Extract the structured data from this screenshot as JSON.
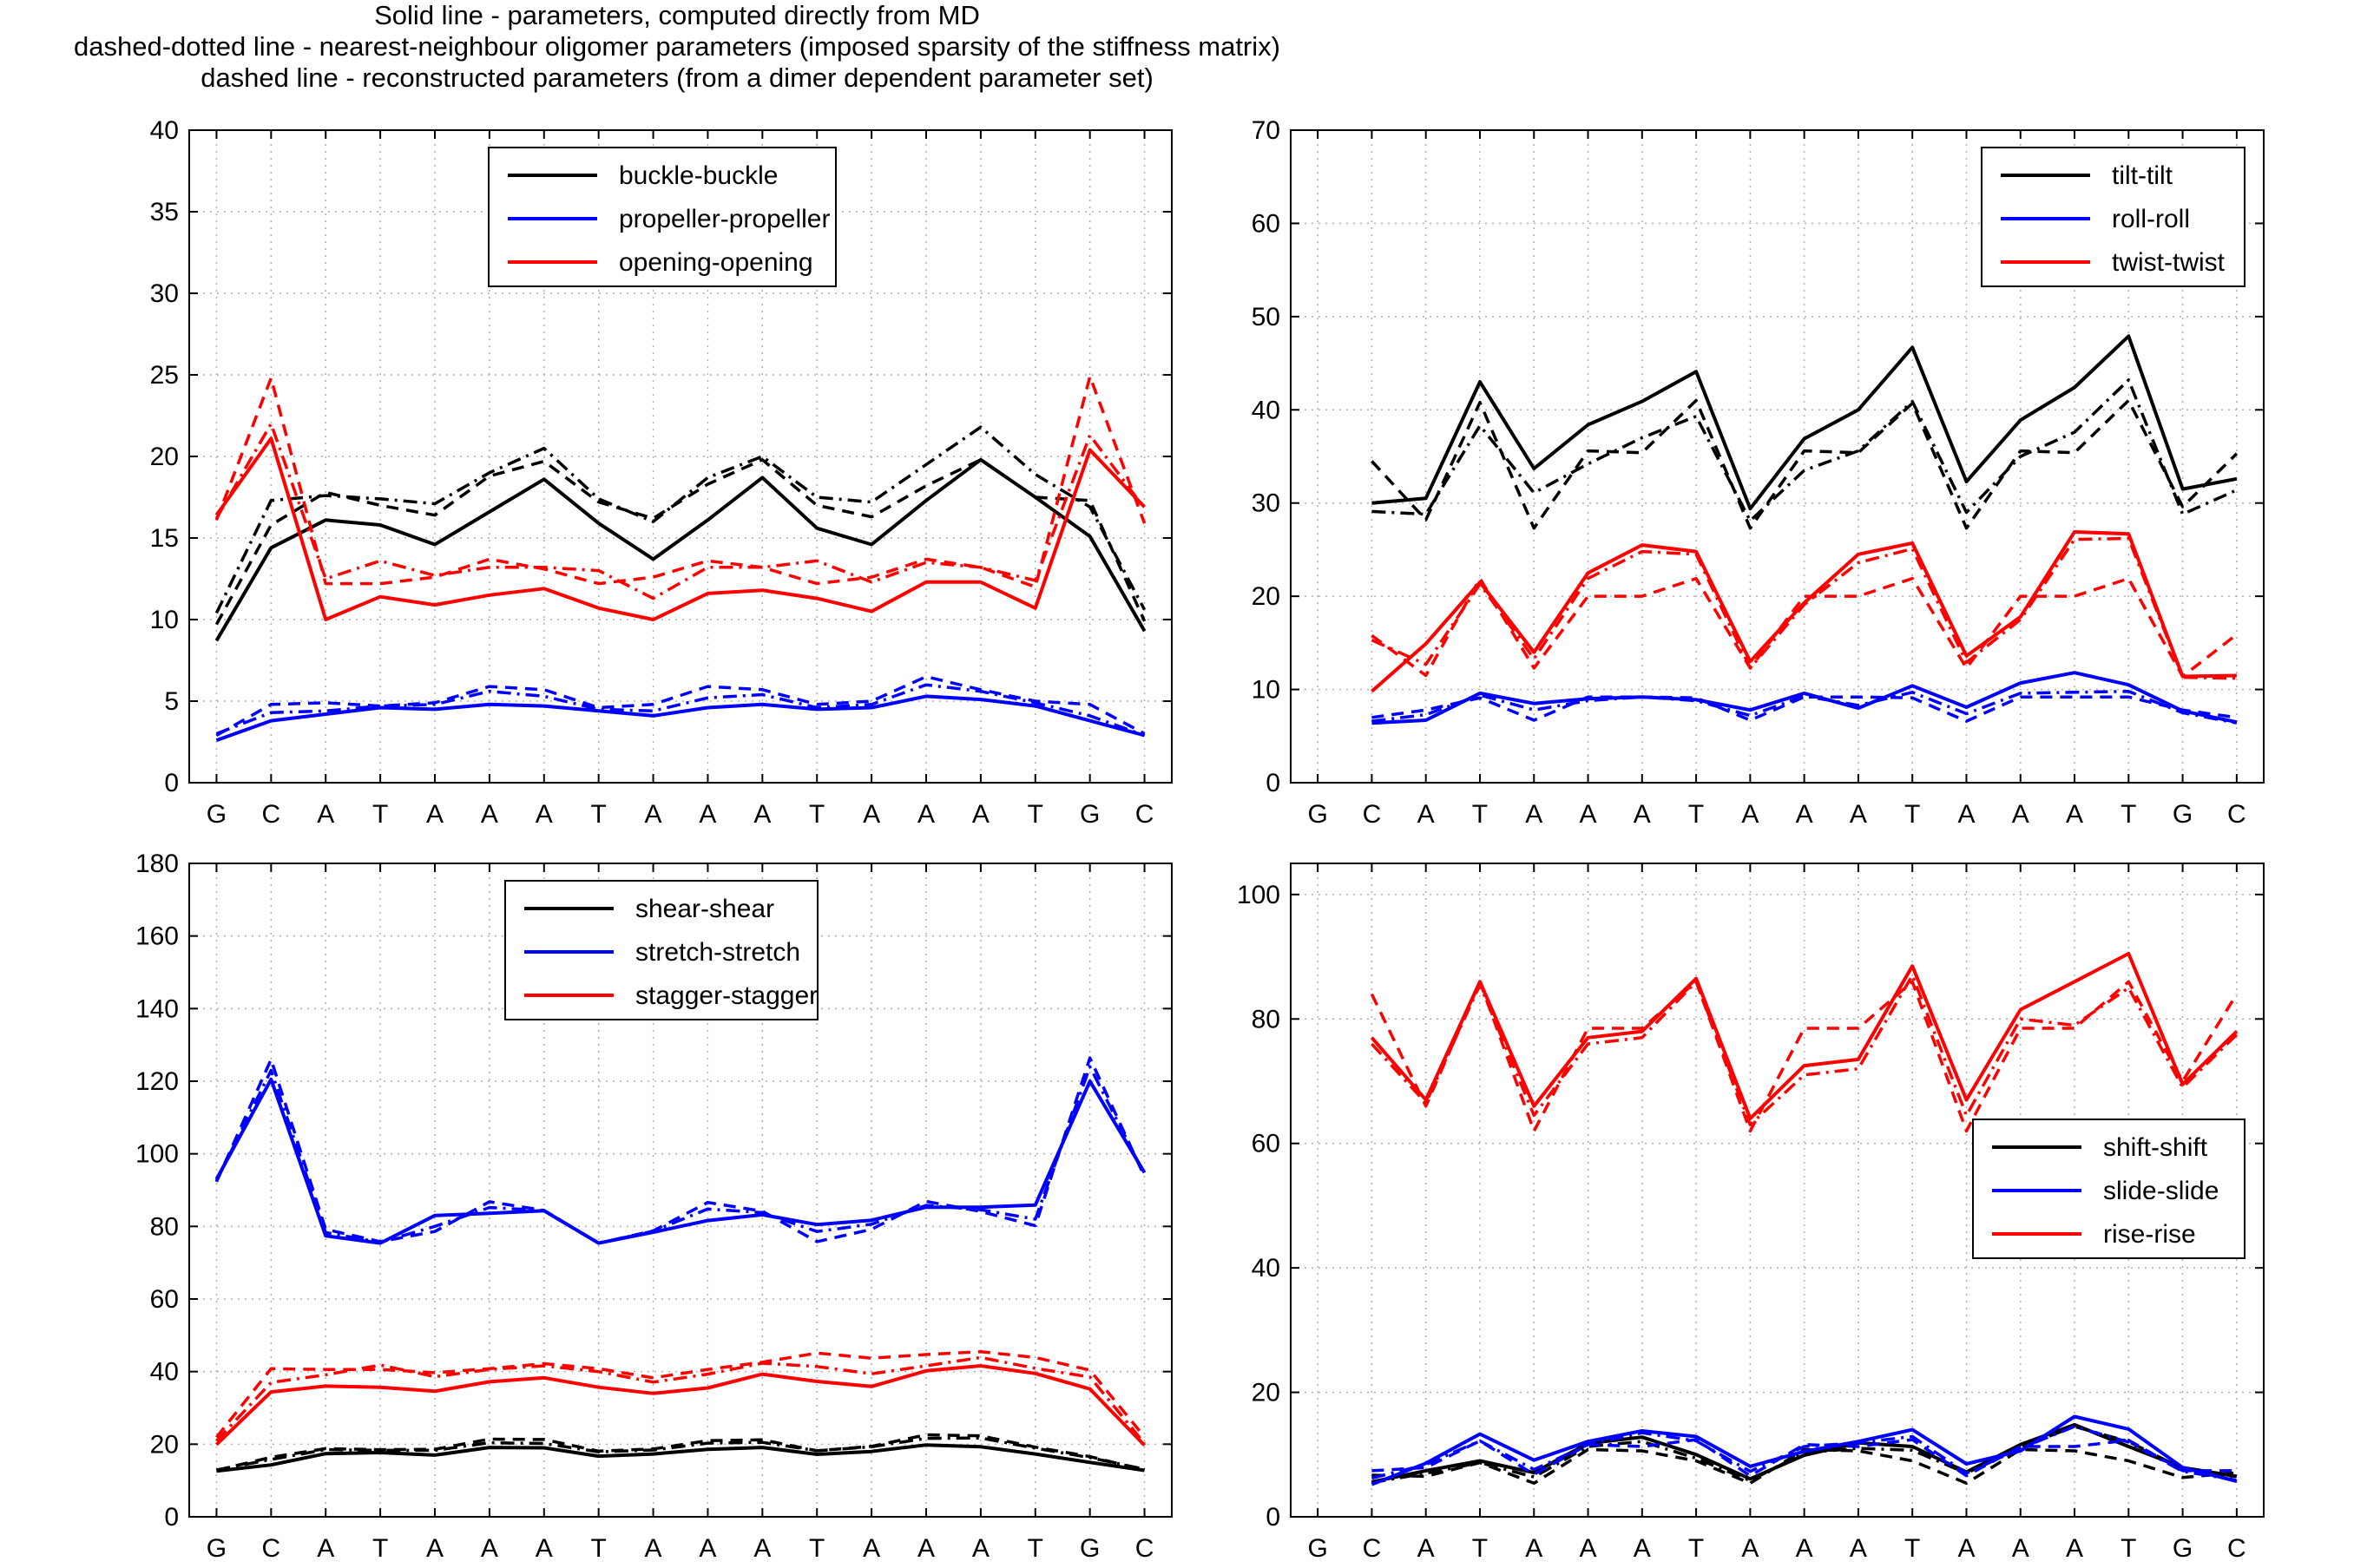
{
  "header": {
    "lines": [
      "Solid line - parameters, computed directly from MD",
      "dashed-dotted line - nearest-neighbour oligomer parameters (imposed sparsity of the stiffness matrix)",
      "dashed line - reconstructed parameters (from a dimer dependent parameter set)"
    ]
  },
  "colors": {
    "black": "#000000",
    "blue": "#0000ff",
    "red": "#ff0000",
    "grid": "#b0b0b0"
  },
  "chart_data": [
    {
      "type": "line",
      "x": [
        "G",
        "C",
        "A",
        "T",
        "A",
        "A",
        "A",
        "T",
        "A",
        "A",
        "A",
        "T",
        "A",
        "A",
        "A",
        "T",
        "G",
        "C"
      ],
      "ylim": [
        0,
        40
      ],
      "yticks": [
        0,
        5,
        10,
        15,
        20,
        25,
        30,
        35,
        40
      ],
      "grid": true,
      "legend_position": "top-center",
      "series": [
        {
          "name": "buckle-buckle",
          "color": "black",
          "style": "solid",
          "values": [
            8.7,
            14.4,
            16.1,
            15.8,
            14.6,
            16.6,
            18.6,
            15.9,
            13.7,
            16.1,
            18.7,
            15.6,
            14.6,
            17.3,
            19.8,
            17.5,
            15.1,
            9.3
          ]
        },
        {
          "color": "black",
          "style": "dashdot",
          "values": [
            10.4,
            17.3,
            17.6,
            17.4,
            17.1,
            19.0,
            20.5,
            17.4,
            16.0,
            18.7,
            20.0,
            17.5,
            17.2,
            19.5,
            21.8,
            18.9,
            16.9,
            10.6
          ]
        },
        {
          "color": "black",
          "style": "dash",
          "values": [
            9.7,
            15.8,
            17.8,
            17.0,
            16.4,
            18.8,
            19.7,
            17.2,
            16.2,
            18.3,
            19.8,
            17.0,
            16.3,
            18.2,
            19.8,
            17.5,
            17.3,
            9.9
          ]
        },
        {
          "name": "propeller-propeller",
          "color": "blue",
          "style": "solid",
          "values": [
            2.6,
            3.8,
            4.2,
            4.6,
            4.5,
            4.8,
            4.7,
            4.4,
            4.1,
            4.6,
            4.8,
            4.5,
            4.6,
            5.3,
            5.1,
            4.7,
            3.8,
            2.9
          ]
        },
        {
          "color": "blue",
          "style": "dashdot",
          "values": [
            3.0,
            4.3,
            4.4,
            4.7,
            4.8,
            5.6,
            5.3,
            4.5,
            4.4,
            5.2,
            5.4,
            4.6,
            4.8,
            6.0,
            5.6,
            4.9,
            4.1,
            2.9
          ]
        },
        {
          "color": "blue",
          "style": "dash",
          "values": [
            2.9,
            4.8,
            4.9,
            4.7,
            4.9,
            5.9,
            5.7,
            4.6,
            4.8,
            5.9,
            5.7,
            4.8,
            5.0,
            6.5,
            5.7,
            5.0,
            4.8,
            3.0
          ]
        },
        {
          "name": "opening-opening",
          "color": "red",
          "style": "solid",
          "values": [
            16.4,
            21.1,
            10.0,
            11.4,
            10.9,
            11.5,
            11.9,
            10.7,
            10.0,
            11.6,
            11.8,
            11.3,
            10.5,
            12.3,
            12.3,
            10.7,
            20.4,
            16.9
          ]
        },
        {
          "color": "red",
          "style": "dashdot",
          "values": [
            16.2,
            22.0,
            12.5,
            13.6,
            12.7,
            13.2,
            13.2,
            13.0,
            11.3,
            13.2,
            13.2,
            13.6,
            12.3,
            13.5,
            13.2,
            12.4,
            21.3,
            16.8
          ]
        },
        {
          "color": "red",
          "style": "dash",
          "values": [
            16.1,
            24.8,
            12.2,
            12.2,
            12.6,
            13.7,
            13.1,
            12.2,
            12.6,
            13.6,
            13.2,
            12.2,
            12.6,
            13.7,
            13.2,
            12.0,
            24.9,
            15.9
          ]
        }
      ]
    },
    {
      "type": "line",
      "x": [
        "G",
        "C",
        "A",
        "T",
        "A",
        "A",
        "A",
        "T",
        "A",
        "A",
        "A",
        "T",
        "A",
        "A",
        "A",
        "T",
        "G",
        "C"
      ],
      "ylim": [
        0,
        70
      ],
      "yticks": [
        0,
        10,
        20,
        30,
        40,
        50,
        60,
        70
      ],
      "grid": true,
      "legend_position": "top-right",
      "series": [
        {
          "name": "tilt-tilt",
          "color": "black",
          "style": "solid",
          "values": [
            null,
            30.0,
            30.5,
            43.0,
            33.7,
            38.4,
            40.9,
            44.1,
            29.4,
            36.9,
            40.0,
            46.7,
            32.3,
            38.9,
            42.4,
            47.9,
            31.5,
            32.6
          ]
        },
        {
          "color": "black",
          "style": "dashdot",
          "values": [
            null,
            29.1,
            28.8,
            38.3,
            31.1,
            34.2,
            37.0,
            39.3,
            28.1,
            33.5,
            35.6,
            40.9,
            29.0,
            35.0,
            37.6,
            43.2,
            28.8,
            31.4
          ]
        },
        {
          "color": "black",
          "style": "dash",
          "values": [
            null,
            34.5,
            28.2,
            40.8,
            27.3,
            35.6,
            35.4,
            41.0,
            27.3,
            35.6,
            35.4,
            40.7,
            27.3,
            35.6,
            35.4,
            41.0,
            29.6,
            35.3
          ]
        },
        {
          "name": "roll-roll",
          "color": "blue",
          "style": "solid",
          "values": [
            null,
            6.4,
            6.7,
            9.6,
            8.5,
            9.0,
            9.2,
            8.9,
            7.8,
            9.6,
            8.0,
            10.4,
            8.1,
            10.7,
            11.8,
            10.5,
            7.7,
            6.5
          ]
        },
        {
          "color": "blue",
          "style": "dashdot",
          "values": [
            null,
            6.6,
            7.3,
            9.4,
            7.8,
            8.8,
            9.2,
            8.8,
            7.2,
            9.3,
            8.3,
            9.7,
            7.4,
            9.6,
            9.7,
            9.8,
            7.5,
            6.4
          ]
        },
        {
          "color": "blue",
          "style": "dash",
          "values": [
            null,
            7.0,
            7.8,
            9.1,
            6.7,
            9.2,
            9.2,
            9.1,
            6.7,
            9.2,
            9.2,
            9.1,
            6.6,
            9.2,
            9.2,
            9.2,
            7.8,
            7.0
          ]
        },
        {
          "name": "twist-twist",
          "color": "red",
          "style": "solid",
          "values": [
            null,
            9.8,
            14.9,
            21.5,
            14.0,
            22.5,
            25.5,
            24.8,
            13.0,
            19.3,
            24.5,
            25.7,
            13.6,
            17.8,
            26.9,
            26.7,
            11.4,
            11.5
          ]
        },
        {
          "color": "red",
          "style": "dashdot",
          "values": [
            null,
            15.3,
            12.7,
            21.3,
            13.3,
            21.9,
            24.8,
            24.5,
            12.3,
            19.1,
            23.6,
            25.1,
            12.9,
            17.5,
            26.1,
            26.2,
            11.3,
            11.2
          ]
        },
        {
          "color": "red",
          "style": "dash",
          "values": [
            null,
            15.8,
            11.5,
            21.9,
            12.3,
            20.0,
            20.0,
            21.9,
            12.3,
            20.0,
            20.0,
            21.9,
            12.3,
            20.0,
            20.0,
            21.9,
            11.4,
            15.9
          ]
        }
      ]
    },
    {
      "type": "line",
      "x": [
        "G",
        "C",
        "A",
        "T",
        "A",
        "A",
        "A",
        "T",
        "A",
        "A",
        "A",
        "T",
        "A",
        "A",
        "A",
        "T",
        "G",
        "C"
      ],
      "ylim": [
        0,
        180
      ],
      "yticks": [
        0,
        20,
        40,
        60,
        80,
        100,
        120,
        140,
        160,
        180
      ],
      "grid": true,
      "legend_position": "top-center",
      "series": [
        {
          "name": "shear-shear",
          "color": "black",
          "style": "solid",
          "values": [
            12.6,
            14.3,
            17.4,
            17.7,
            17.0,
            19.1,
            19.0,
            16.7,
            17.3,
            18.6,
            19.1,
            17.2,
            18.0,
            19.8,
            19.3,
            17.3,
            15.0,
            12.8
          ]
        },
        {
          "color": "black",
          "style": "dashdot",
          "values": [
            12.9,
            15.8,
            18.5,
            18.3,
            18.3,
            20.4,
            20.2,
            17.9,
            18.4,
            20.3,
            20.5,
            18.2,
            19.3,
            21.6,
            21.7,
            18.9,
            16.3,
            13.1
          ]
        },
        {
          "color": "black",
          "style": "dash",
          "values": [
            12.8,
            16.4,
            18.8,
            18.5,
            18.6,
            21.4,
            21.3,
            18.1,
            18.7,
            21.0,
            21.2,
            18.2,
            19.4,
            22.6,
            22.3,
            19.2,
            16.6,
            12.9
          ]
        },
        {
          "name": "stretch-stretch",
          "color": "blue",
          "style": "solid",
          "values": [
            93.0,
            120.5,
            77.4,
            75.4,
            83.0,
            83.6,
            84.3,
            75.4,
            78.4,
            81.6,
            83.2,
            80.5,
            81.7,
            85.3,
            85.3,
            85.9,
            120.0,
            94.8
          ]
        },
        {
          "color": "blue",
          "style": "dashdot",
          "values": [
            92.5,
            123.0,
            78.3,
            75.6,
            80.0,
            85.2,
            84.4,
            75.4,
            78.7,
            84.8,
            83.8,
            78.6,
            80.6,
            85.8,
            84.6,
            82.0,
            124.0,
            94.2
          ]
        },
        {
          "color": "blue",
          "style": "dash",
          "values": [
            92.3,
            126.0,
            79.2,
            75.8,
            78.6,
            86.8,
            84.4,
            75.4,
            78.8,
            86.6,
            84.2,
            75.8,
            79.2,
            86.9,
            84.1,
            80.2,
            126.4,
            93.7
          ]
        },
        {
          "name": "stagger-stagger",
          "color": "red",
          "style": "solid",
          "values": [
            19.9,
            34.4,
            36.0,
            35.7,
            34.6,
            37.2,
            38.3,
            35.7,
            34.0,
            35.5,
            39.3,
            37.3,
            35.9,
            40.2,
            41.6,
            39.5,
            35.2,
            19.7
          ]
        },
        {
          "color": "red",
          "style": "dashdot",
          "values": [
            20.9,
            37.0,
            39.1,
            41.8,
            38.6,
            40.6,
            41.6,
            40.0,
            37.1,
            39.3,
            42.3,
            41.4,
            39.4,
            41.6,
            43.9,
            40.9,
            38.5,
            20.2
          ]
        },
        {
          "color": "red",
          "style": "dash",
          "values": [
            21.9,
            40.8,
            40.6,
            40.6,
            39.7,
            40.8,
            42.2,
            40.8,
            38.3,
            40.6,
            42.6,
            45.1,
            43.7,
            44.7,
            45.5,
            43.9,
            40.4,
            22.0
          ]
        }
      ]
    },
    {
      "type": "line",
      "x": [
        "G",
        "C",
        "A",
        "T",
        "A",
        "A",
        "A",
        "T",
        "A",
        "A",
        "A",
        "T",
        "A",
        "A",
        "A",
        "T",
        "G",
        "C"
      ],
      "ylim": [
        0,
        105
      ],
      "yticks": [
        0,
        20,
        40,
        60,
        80,
        100
      ],
      "grid": true,
      "legend_position": "middle-right",
      "series": [
        {
          "name": "shift-shift",
          "color": "black",
          "style": "solid",
          "values": [
            null,
            5.6,
            7.4,
            9.0,
            7.1,
            11.8,
            12.8,
            10.0,
            6.1,
            9.9,
            11.9,
            11.3,
            7.2,
            11.6,
            14.8,
            11.3,
            7.9,
            6.5
          ]
        },
        {
          "color": "black",
          "style": "dashdot",
          "values": [
            null,
            5.5,
            7.0,
            8.7,
            6.4,
            11.3,
            12.1,
            9.4,
            5.8,
            10.3,
            11.0,
            10.7,
            7.0,
            11.2,
            14.5,
            12.1,
            7.7,
            6.4
          ]
        },
        {
          "color": "black",
          "style": "dash",
          "values": [
            null,
            6.7,
            6.5,
            8.7,
            5.4,
            10.8,
            10.6,
            9.0,
            5.4,
            10.8,
            10.6,
            9.0,
            5.4,
            10.8,
            10.6,
            9.0,
            6.3,
            7.1
          ]
        },
        {
          "name": "slide-slide",
          "color": "blue",
          "style": "solid",
          "values": [
            null,
            5.2,
            8.6,
            13.3,
            9.1,
            12.1,
            13.8,
            12.9,
            8.1,
            10.5,
            12.1,
            14.0,
            8.5,
            10.6,
            16.1,
            14.1,
            7.9,
            5.7
          ]
        },
        {
          "color": "blue",
          "style": "dashdot",
          "values": [
            null,
            6.2,
            8.4,
            12.2,
            7.6,
            11.6,
            13.5,
            12.2,
            7.3,
            11.3,
            11.9,
            12.9,
            7.0,
            11.0,
            14.5,
            12.0,
            7.3,
            5.9
          ]
        },
        {
          "color": "blue",
          "style": "dash",
          "values": [
            null,
            7.4,
            7.9,
            12.2,
            6.8,
            11.6,
            11.3,
            12.4,
            6.6,
            11.6,
            11.3,
            12.4,
            6.6,
            11.3,
            11.3,
            12.3,
            7.4,
            7.4
          ]
        },
        {
          "name": "rise-rise",
          "color": "red",
          "style": "solid",
          "values": [
            null,
            77.0,
            67.0,
            86.0,
            66.0,
            77.0,
            78.0,
            86.5,
            64.0,
            72.5,
            73.5,
            88.5,
            67.0,
            81.5,
            86.0,
            90.5,
            69.5,
            78.0
          ]
        },
        {
          "color": "red",
          "style": "dashdot",
          "values": [
            null,
            76.0,
            66.5,
            85.5,
            64.5,
            76.0,
            77.0,
            86.0,
            63.0,
            71.0,
            72.0,
            87.0,
            64.5,
            80.0,
            79.0,
            85.0,
            69.0,
            77.5
          ]
        },
        {
          "color": "red",
          "style": "dash",
          "values": [
            null,
            84.0,
            66.0,
            86.0,
            62.0,
            78.5,
            78.5,
            86.0,
            62.0,
            78.5,
            78.5,
            86.0,
            62.0,
            78.5,
            78.5,
            86.0,
            70.0,
            84.0
          ]
        }
      ]
    }
  ]
}
